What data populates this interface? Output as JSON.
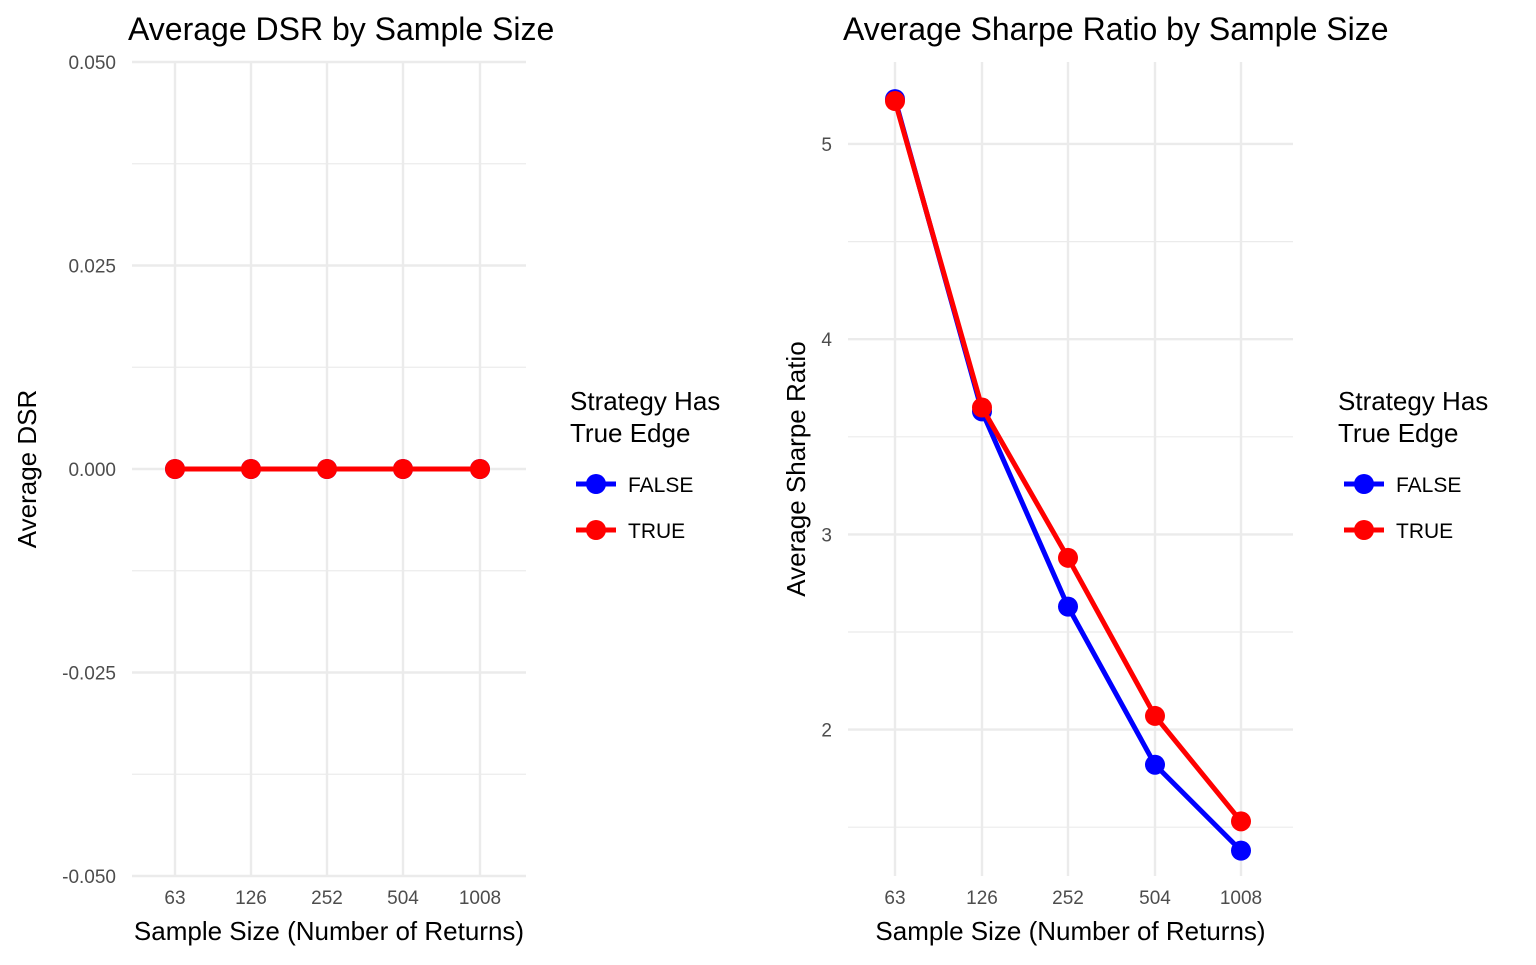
{
  "chart_data": [
    {
      "type": "line",
      "title": "Average DSR by Sample Size",
      "xlabel": "Sample Size (Number of Returns)",
      "ylabel": "Average DSR",
      "categories": [
        "63",
        "126",
        "252",
        "504",
        "1008"
      ],
      "y_ticks": [
        "0.050",
        "0.025",
        "0.000",
        "-0.025",
        "-0.050"
      ],
      "ylim": [
        -0.05,
        0.05
      ],
      "grid": true,
      "legend_title": [
        "Strategy Has",
        "True Edge"
      ],
      "legend_position": "right",
      "series": [
        {
          "name": "FALSE",
          "color": "#0000ff",
          "values": [
            0,
            0,
            0,
            0,
            0
          ]
        },
        {
          "name": "TRUE",
          "color": "#ff0000",
          "values": [
            0,
            0,
            0,
            0,
            0
          ]
        }
      ]
    },
    {
      "type": "line",
      "title": "Average Sharpe Ratio by Sample Size",
      "xlabel": "Sample Size (Number of Returns)",
      "ylabel": "Average Sharpe Ratio",
      "categories": [
        "63",
        "126",
        "252",
        "504",
        "1008"
      ],
      "y_ticks": [
        "5",
        "4",
        "3",
        "2"
      ],
      "ylim": [
        1.25,
        5.42
      ],
      "grid": true,
      "legend_title": [
        "Strategy Has",
        "True Edge"
      ],
      "legend_position": "right",
      "series": [
        {
          "name": "FALSE",
          "color": "#0000ff",
          "values": [
            5.23,
            3.63,
            2.63,
            1.82,
            1.38
          ]
        },
        {
          "name": "TRUE",
          "color": "#ff0000",
          "values": [
            5.22,
            3.65,
            2.88,
            2.07,
            1.53
          ]
        }
      ]
    }
  ]
}
